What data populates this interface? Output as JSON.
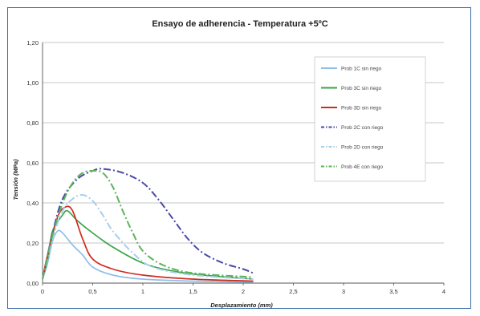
{
  "chart_data": {
    "type": "line",
    "title": "Ensayo de adherencia - Temperatura +5ºC",
    "xlabel": "Desplazamiento (mm)",
    "ylabel": "Tensión (MPa)",
    "xlim": [
      0,
      4
    ],
    "ylim": [
      0,
      1.2
    ],
    "xticks": [
      "0",
      "0,5",
      "1",
      "1,5",
      "2",
      "2,5",
      "3",
      "3,5",
      "4"
    ],
    "yticks": [
      "0,00",
      "0,20",
      "0,40",
      "0,60",
      "0,80",
      "1,00",
      "1,20"
    ],
    "grid": "horizontal",
    "legend_position": "top-right",
    "series": [
      {
        "name": "Prob 1C sin riego",
        "color": "#8fbfea",
        "dash": "solid",
        "points": [
          [
            0,
            0.02
          ],
          [
            0.05,
            0.1
          ],
          [
            0.1,
            0.21
          ],
          [
            0.15,
            0.26
          ],
          [
            0.2,
            0.25
          ],
          [
            0.3,
            0.19
          ],
          [
            0.4,
            0.14
          ],
          [
            0.5,
            0.08
          ],
          [
            0.7,
            0.04
          ],
          [
            1.0,
            0.02
          ],
          [
            1.5,
            0.01
          ],
          [
            2.1,
            0.005
          ]
        ]
      },
      {
        "name": "Prob 3C sin riego",
        "color": "#3aa347",
        "dash": "solid",
        "points": [
          [
            0,
            0.02
          ],
          [
            0.05,
            0.12
          ],
          [
            0.1,
            0.26
          ],
          [
            0.2,
            0.34
          ],
          [
            0.25,
            0.36
          ],
          [
            0.35,
            0.31
          ],
          [
            0.5,
            0.25
          ],
          [
            0.7,
            0.18
          ],
          [
            1.0,
            0.1
          ],
          [
            1.3,
            0.06
          ],
          [
            1.6,
            0.04
          ],
          [
            2.1,
            0.02
          ]
        ]
      },
      {
        "name": "Prob 3D sin riego",
        "color": "#d12b1f",
        "dash": "solid",
        "points": [
          [
            0,
            0.02
          ],
          [
            0.05,
            0.14
          ],
          [
            0.15,
            0.33
          ],
          [
            0.23,
            0.38
          ],
          [
            0.3,
            0.36
          ],
          [
            0.4,
            0.22
          ],
          [
            0.5,
            0.12
          ],
          [
            0.7,
            0.07
          ],
          [
            1.0,
            0.04
          ],
          [
            1.5,
            0.02
          ],
          [
            2.1,
            0.01
          ]
        ]
      },
      {
        "name": "Prob 2C con riego",
        "color": "#4a4aa6",
        "dash": "dashdot",
        "points": [
          [
            0,
            0.02
          ],
          [
            0.1,
            0.25
          ],
          [
            0.2,
            0.42
          ],
          [
            0.35,
            0.52
          ],
          [
            0.5,
            0.56
          ],
          [
            0.6,
            0.57
          ],
          [
            0.8,
            0.55
          ],
          [
            1.0,
            0.5
          ],
          [
            1.15,
            0.42
          ],
          [
            1.3,
            0.32
          ],
          [
            1.45,
            0.22
          ],
          [
            1.6,
            0.15
          ],
          [
            1.8,
            0.1
          ],
          [
            2.0,
            0.07
          ],
          [
            2.1,
            0.05
          ]
        ]
      },
      {
        "name": "Prob 2D con riego",
        "color": "#a6cfee",
        "dash": "dashdot",
        "points": [
          [
            0,
            0.02
          ],
          [
            0.1,
            0.22
          ],
          [
            0.2,
            0.36
          ],
          [
            0.3,
            0.42
          ],
          [
            0.4,
            0.44
          ],
          [
            0.5,
            0.41
          ],
          [
            0.6,
            0.34
          ],
          [
            0.7,
            0.26
          ],
          [
            0.9,
            0.15
          ],
          [
            1.1,
            0.08
          ],
          [
            1.5,
            0.04
          ],
          [
            2.1,
            0.02
          ]
        ]
      },
      {
        "name": "Prob 4E con riego",
        "color": "#5db35a",
        "dash": "dashdot",
        "points": [
          [
            0,
            0.02
          ],
          [
            0.1,
            0.24
          ],
          [
            0.2,
            0.4
          ],
          [
            0.3,
            0.5
          ],
          [
            0.4,
            0.55
          ],
          [
            0.5,
            0.56
          ],
          [
            0.6,
            0.55
          ],
          [
            0.7,
            0.48
          ],
          [
            0.8,
            0.36
          ],
          [
            0.9,
            0.25
          ],
          [
            1.0,
            0.16
          ],
          [
            1.2,
            0.09
          ],
          [
            1.5,
            0.05
          ],
          [
            2.1,
            0.03
          ]
        ]
      }
    ]
  }
}
